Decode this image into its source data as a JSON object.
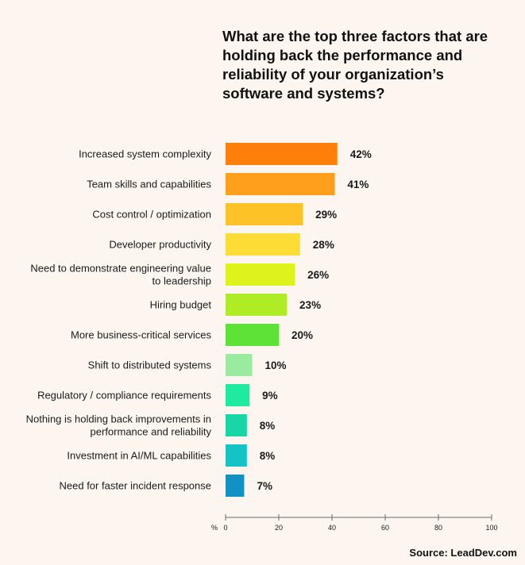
{
  "title": "What are the top three factors that are holding back the performance and reliability of your organization’s software and systems?",
  "source": "Source: LeadDev.com",
  "chart_data": {
    "type": "bar",
    "orientation": "horizontal",
    "title": "What are the top three factors that are holding back the performance and reliability of your organization’s software and systems?",
    "xlabel": "%",
    "xlim": [
      0,
      100
    ],
    "xticks": [
      0,
      20,
      40,
      60,
      80,
      100
    ],
    "categories": [
      [
        "Increased system complexity"
      ],
      [
        "Team skills and capabilities"
      ],
      [
        "Cost control / optimization"
      ],
      [
        "Developer productivity"
      ],
      [
        "Need to demonstrate engineering value",
        "to leadership"
      ],
      [
        "Hiring budget"
      ],
      [
        "More business-critical services"
      ],
      [
        "Shift to distributed systems"
      ],
      [
        "Regulatory / compliance requirements"
      ],
      [
        "Nothing is holding back improvements in",
        "performance and reliability"
      ],
      [
        "Investment in AI/ML capabilities"
      ],
      [
        "Need for faster incident response"
      ]
    ],
    "values": [
      42,
      41,
      29,
      28,
      26,
      23,
      20,
      10,
      9,
      8,
      8,
      7
    ],
    "value_labels": [
      "42%",
      "41%",
      "29%",
      "28%",
      "26%",
      "23%",
      "20%",
      "10%",
      "9%",
      "8%",
      "8%",
      "7%"
    ],
    "colors": [
      "#ff7f0a",
      "#ff9f1c",
      "#fdc228",
      "#fddc36",
      "#def21c",
      "#b0ec26",
      "#5ee238",
      "#9aeaa0",
      "#1eeaa0",
      "#18d6a6",
      "#14c4c4",
      "#1391c4"
    ]
  }
}
